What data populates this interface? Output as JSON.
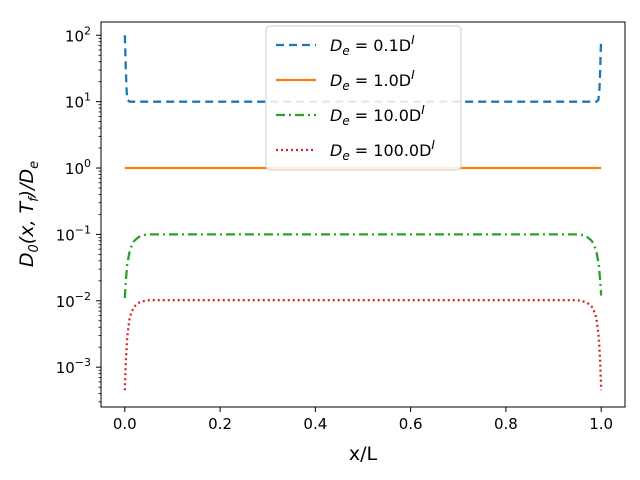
{
  "chart_data": {
    "type": "line",
    "xlabel": "x/L",
    "ylabel_parts": {
      "main": "D",
      "sub0": "0",
      "args": "(x, T",
      "subf": "f",
      "close": ")/D",
      "sube": "e"
    },
    "xlim": [
      -0.05,
      1.05
    ],
    "ylim_log10": [
      -3.6,
      2.2
    ],
    "yscale": "log",
    "x_ticks": [
      {
        "value": 0.0,
        "label": "0.0"
      },
      {
        "value": 0.2,
        "label": "0.2"
      },
      {
        "value": 0.4,
        "label": "0.4"
      },
      {
        "value": 0.6,
        "label": "0.6"
      },
      {
        "value": 0.8,
        "label": "0.8"
      },
      {
        "value": 1.0,
        "label": "1.0"
      }
    ],
    "y_ticks": [
      {
        "value": 100,
        "base": "10",
        "exp": "2"
      },
      {
        "value": 10,
        "base": "10",
        "exp": "1"
      },
      {
        "value": 1,
        "base": "10",
        "exp": "0"
      },
      {
        "value": 0.1,
        "base": "10",
        "exp": "−1"
      },
      {
        "value": 0.01,
        "base": "10",
        "exp": "−2"
      },
      {
        "value": 0.001,
        "base": "10",
        "exp": "−3"
      }
    ],
    "legend_position": "top-center",
    "series": [
      {
        "name": "D_e = 0.1D^I",
        "legend": {
          "pre": "D",
          "sub": "e",
          "mid": " = 0.1D",
          "sup": "I"
        },
        "color": "#1f77b4",
        "dash": "8 5",
        "x": [
          0.0,
          0.001,
          0.002,
          0.004,
          0.006,
          0.01,
          0.02,
          0.5,
          0.98,
          0.99,
          0.994,
          0.996,
          0.998,
          0.999,
          1.0
        ],
        "y": [
          100,
          60,
          30,
          14,
          10.5,
          10,
          10,
          10,
          10,
          10,
          10.5,
          14,
          30,
          60,
          85
        ]
      },
      {
        "name": "D_e = 1.0D^I",
        "legend": {
          "pre": "D",
          "sub": "e",
          "mid": " = 1.0D",
          "sup": "I"
        },
        "color": "#ff7f0e",
        "dash": "",
        "x": [
          0.0,
          0.5,
          1.0
        ],
        "y": [
          1,
          1,
          1
        ]
      },
      {
        "name": "D_e = 10.0D^I",
        "legend": {
          "pre": "D",
          "sub": "e",
          "mid": " = 10.0D",
          "sup": "I"
        },
        "color": "#2ca02c",
        "dash": "9 4 2 4",
        "x": [
          0.0,
          0.002,
          0.005,
          0.01,
          0.015,
          0.02,
          0.03,
          0.04,
          0.05,
          0.5,
          0.95,
          0.96,
          0.97,
          0.98,
          0.985,
          0.99,
          0.995,
          0.998,
          1.0
        ],
        "y": [
          0.011,
          0.02,
          0.035,
          0.055,
          0.07,
          0.08,
          0.092,
          0.098,
          0.1,
          0.1,
          0.1,
          0.098,
          0.092,
          0.08,
          0.07,
          0.055,
          0.035,
          0.02,
          0.012
        ]
      },
      {
        "name": "D_e = 100.0D^I",
        "legend": {
          "pre": "D",
          "sub": "e",
          "mid": " = 100.0D",
          "sup": "I"
        },
        "color": "#d62728",
        "dash": "2 3",
        "x": [
          0.0,
          0.002,
          0.005,
          0.01,
          0.015,
          0.02,
          0.03,
          0.04,
          0.05,
          0.5,
          0.95,
          0.96,
          0.97,
          0.98,
          0.985,
          0.99,
          0.995,
          0.998,
          1.0
        ],
        "y": [
          0.00045,
          0.0012,
          0.0028,
          0.0055,
          0.007,
          0.0082,
          0.0094,
          0.0099,
          0.0102,
          0.0102,
          0.0102,
          0.0099,
          0.0094,
          0.0082,
          0.007,
          0.0055,
          0.0028,
          0.0012,
          0.00045
        ]
      }
    ]
  }
}
